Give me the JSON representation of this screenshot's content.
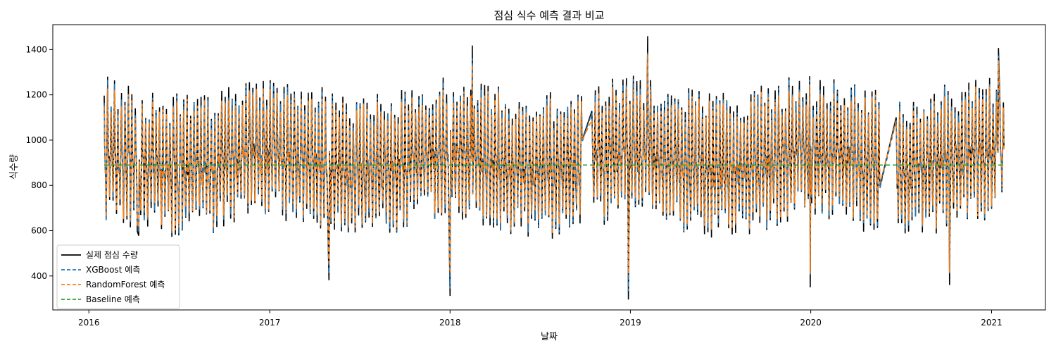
{
  "chart_data": {
    "type": "line",
    "title": "점심 식수 예측 결과 비교",
    "xlabel": "날짜",
    "ylabel": "식수량",
    "x_ticks": [
      "2016",
      "2017",
      "2018",
      "2019",
      "2020",
      "2021"
    ],
    "y_ticks": [
      400,
      600,
      800,
      1000,
      1200,
      1400
    ],
    "xlim": [
      "2015-10-20",
      "2021-04-20"
    ],
    "ylim": [
      250,
      1510
    ],
    "grid": false,
    "legend_position": "lower-left",
    "x_start": "2016-02-01",
    "x_end": "2021-01-26",
    "series": [
      {
        "name": "실제 점심 수량",
        "color": "#000000",
        "style": "solid",
        "x_start": "2016-02-01",
        "x_end": "2021-01-26",
        "summary": {
          "min": 296,
          "max": 1459,
          "mean": 890
        },
        "extremes": [
          {
            "x": "2016-04-10",
            "y": 578
          },
          {
            "x": "2017-05-01",
            "y": 381
          },
          {
            "x": "2018-01-01",
            "y": 312
          },
          {
            "x": "2018-02-15",
            "y": 1418
          },
          {
            "x": "2018-12-28",
            "y": 296
          },
          {
            "x": "2019-02-05",
            "y": 1459
          },
          {
            "x": "2019-12-31",
            "y": 350
          },
          {
            "x": "2020-10-08",
            "y": 360
          },
          {
            "x": "2021-01-15",
            "y": 1407
          }
        ]
      },
      {
        "name": "XGBoost 예측",
        "color": "#1f77b4",
        "style": "dashed",
        "x_start": "2016-02-01",
        "x_end": "2021-01-26",
        "summary": {
          "min": 330,
          "max": 1390,
          "mean": 890
        }
      },
      {
        "name": "RandomForest 예측",
        "color": "#ff7f0e",
        "style": "dashed",
        "x_start": "2016-02-01",
        "x_end": "2021-01-26",
        "summary": {
          "min": 410,
          "max": 1380,
          "mean": 890
        }
      },
      {
        "name": "Baseline 예측",
        "color": "#2ca02c",
        "style": "dashed",
        "x_start": "2016-02-01",
        "x_end": "2021-01-26",
        "value": 890
      }
    ]
  }
}
